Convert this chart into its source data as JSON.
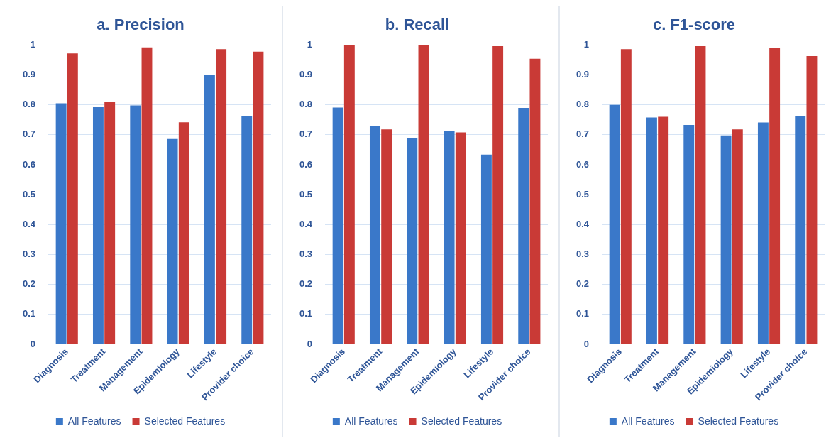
{
  "chart_data": [
    {
      "type": "bar",
      "title": "a. Precision",
      "categories": [
        "Diagnosis",
        "Treatment",
        "Management",
        "Epidemiology",
        "Lifestyle",
        "Provider choice"
      ],
      "series": [
        {
          "name": "All Features",
          "color": "#3a78c9",
          "values": [
            0.805,
            0.792,
            0.798,
            0.686,
            0.9,
            0.763
          ]
        },
        {
          "name": "Selected Features",
          "color": "#c93a36",
          "values": [
            0.972,
            0.811,
            0.992,
            0.742,
            0.986,
            0.978
          ]
        }
      ],
      "ylim": [
        0,
        1
      ],
      "yticks": [
        0,
        0.1,
        0.2,
        0.3,
        0.4,
        0.5,
        0.6,
        0.7,
        0.8,
        0.9,
        1
      ],
      "grid": "y",
      "legend": "bottom"
    },
    {
      "type": "bar",
      "title": "b. Recall",
      "categories": [
        "Diagnosis",
        "Treatment",
        "Management",
        "Epidemiology",
        "Lifestyle",
        "Provider choice"
      ],
      "series": [
        {
          "name": "All Features",
          "color": "#3a78c9",
          "values": [
            0.791,
            0.728,
            0.689,
            0.713,
            0.634,
            0.79
          ]
        },
        {
          "name": "Selected Features",
          "color": "#c93a36",
          "values": [
            1,
            0.718,
            1,
            0.708,
            0.996,
            0.954
          ]
        }
      ],
      "ylim": [
        0,
        1
      ],
      "yticks": [
        0,
        0.1,
        0.2,
        0.3,
        0.4,
        0.5,
        0.6,
        0.7,
        0.8,
        0.9,
        1
      ],
      "grid": "y",
      "legend": "bottom"
    },
    {
      "type": "bar",
      "title": "c. F1-score",
      "categories": [
        "Diagnosis",
        "Treatment",
        "Management",
        "Epidemiology",
        "Lifestyle",
        "Provider choice"
      ],
      "series": [
        {
          "name": "All Features",
          "color": "#3a78c9",
          "values": [
            0.8,
            0.758,
            0.733,
            0.698,
            0.741,
            0.763
          ]
        },
        {
          "name": "Selected Features",
          "color": "#c93a36",
          "values": [
            0.986,
            0.76,
            0.996,
            0.718,
            0.991,
            0.963
          ]
        }
      ],
      "ylim": [
        0,
        1
      ],
      "yticks": [
        0,
        0.1,
        0.2,
        0.3,
        0.4,
        0.5,
        0.6,
        0.7,
        0.8,
        0.9,
        1
      ],
      "grid": "y",
      "legend": "bottom"
    }
  ]
}
